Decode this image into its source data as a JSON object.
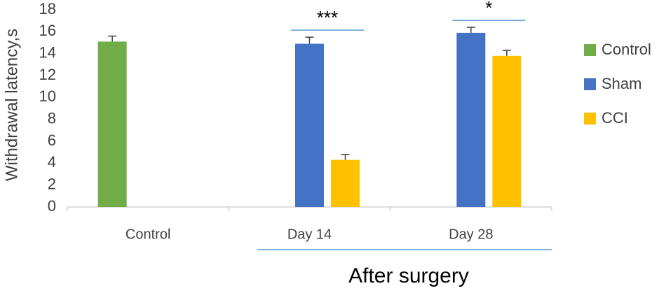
{
  "chart_data": {
    "type": "bar",
    "y_label": "Withdrawal latency,s",
    "categories": [
      "Control",
      "Day 14",
      "Day 28"
    ],
    "group_label": "After surgery",
    "series": [
      {
        "name": "Control",
        "color": "#70ad47",
        "values": [
          15.1,
          null,
          null
        ],
        "errors": [
          0.5,
          null,
          null
        ]
      },
      {
        "name": "Sham",
        "color": "#4472c4",
        "values": [
          null,
          14.9,
          15.9
        ],
        "errors": [
          null,
          0.6,
          0.5
        ]
      },
      {
        "name": "CCI",
        "color": "#ffc000",
        "values": [
          null,
          4.3,
          13.8
        ],
        "errors": [
          null,
          0.5,
          0.5
        ]
      }
    ],
    "annotations": [
      "***",
      "*"
    ],
    "ylim": [
      0,
      18
    ],
    "yticks": [
      0,
      2,
      4,
      6,
      8,
      10,
      12,
      14,
      16,
      18
    ],
    "grid": false,
    "legend": "right"
  }
}
